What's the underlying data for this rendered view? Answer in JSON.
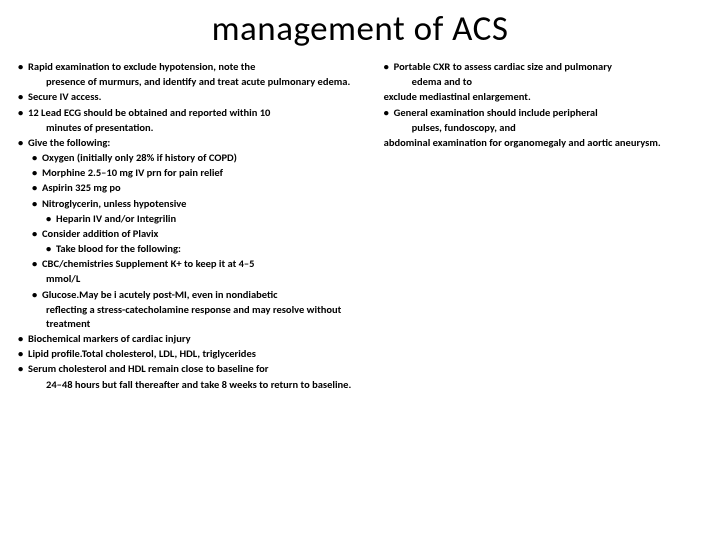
{
  "title": "management of ACS",
  "colors": {
    "background": "#ffffff",
    "text": "#000000"
  },
  "typography": {
    "title_fontsize": 35,
    "title_weight": 400,
    "body_fontsize": 10.5,
    "body_weight": 700,
    "font_family": "Calibri, Arial, sans-serif"
  },
  "left": {
    "items": [
      {
        "level": 1,
        "text": "Rapid examination to exclude hypotension, note the"
      },
      {
        "level": "cont",
        "text": "presence of murmurs, and identify and treat acute pulmonary edema."
      },
      {
        "level": 1,
        "text": "Secure IV access."
      },
      {
        "level": 1,
        "text": "12 Lead ECG should be obtained and reported within 10"
      },
      {
        "level": "cont",
        "text": "minutes of presentation."
      },
      {
        "level": 1,
        "text": "Give the following:"
      },
      {
        "level": 2,
        "text": "Oxygen (initially only 28% if history of COPD)"
      },
      {
        "level": 2,
        "text": "Morphine 2.5–10 mg IV prn for pain relief"
      },
      {
        "level": 2,
        "text": "Aspirin 325 mg po"
      },
      {
        "level": 2,
        "text": "Nitroglycerin, unless hypotensive"
      },
      {
        "level": 3,
        "text": "Heparin IV and/or Integrilin"
      },
      {
        "level": 2,
        "text": "Consider addition of Plavix"
      },
      {
        "level": 3,
        "text": "Take blood for the following:"
      },
      {
        "level": 2,
        "text": "CBC/chemistries Supplement K+ to keep it at 4–5"
      },
      {
        "level": "cont",
        "text": "mmol/L"
      },
      {
        "level": 2,
        "text": "Glucose.May be i acutely post-MI, even in nondiabetic"
      },
      {
        "level": "cont",
        "text": "reflecting a stress-catecholamine response and may resolve without treatment"
      },
      {
        "level": 1,
        "text": "Biochemical markers of cardiac injury"
      },
      {
        "level": 1,
        "text": "Lipid profile.Total cholesterol, LDL, HDL, triglycerides"
      },
      {
        "level": 1,
        "text": "Serum cholesterol and HDL remain close to baseline for"
      },
      {
        "level": "cont",
        "text": "24–48 hours but fall thereafter and take 8 weeks to return to baseline."
      }
    ]
  },
  "right": {
    "items": [
      {
        "level": 1,
        "text": "Portable CXR to assess cardiac size and pulmonary"
      },
      {
        "level": "cont",
        "text": "edema and to"
      },
      {
        "level": "plain",
        "text": "exclude mediastinal enlargement."
      },
      {
        "level": 1,
        "text": "General examination should include peripheral"
      },
      {
        "level": "cont",
        "text": "pulses, fundoscopy, and"
      },
      {
        "level": "plain",
        "text": "abdominal examination for organomegaly and aortic aneurysm."
      }
    ]
  }
}
